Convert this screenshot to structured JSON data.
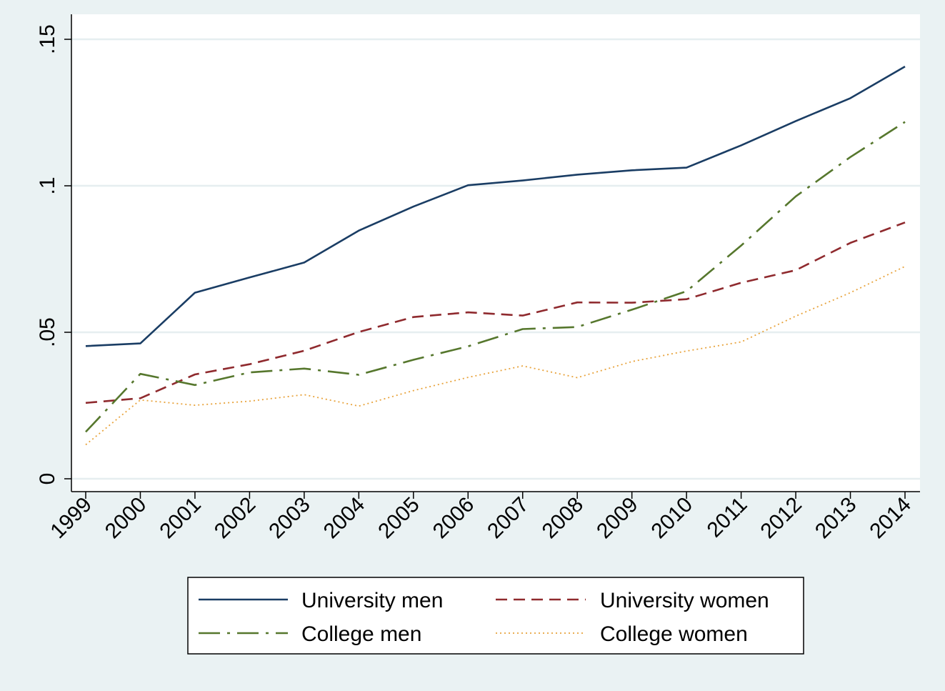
{
  "chart_data": {
    "type": "line",
    "title": "",
    "xlabel": "",
    "ylabel": "",
    "x": [
      1999,
      2000,
      2001,
      2002,
      2003,
      2004,
      2005,
      2006,
      2007,
      2008,
      2009,
      2010,
      2011,
      2012,
      2013,
      2014
    ],
    "x_tick_labels": [
      "1999",
      "2000",
      "2001",
      "2002",
      "2003",
      "2004",
      "2005",
      "2006",
      "2007",
      "2008",
      "2009",
      "2010",
      "2011",
      "2012",
      "2013",
      "2014"
    ],
    "ylim": [
      0,
      0.15
    ],
    "y_ticks": [
      0,
      0.05,
      0.1,
      0.15
    ],
    "y_tick_labels": [
      "0",
      ".05",
      ".1",
      ".15"
    ],
    "grid": true,
    "legend_position": "bottom",
    "series": [
      {
        "name": "University men",
        "color": "#1a3d64",
        "dash": "solid",
        "values": [
          0.0453,
          0.0462,
          0.0635,
          0.0687,
          0.0738,
          0.0847,
          0.0929,
          0.1002,
          0.1018,
          0.1038,
          0.1053,
          0.1062,
          0.1138,
          0.1221,
          0.1299,
          0.1407
        ]
      },
      {
        "name": "University women",
        "color": "#8f2a2e",
        "dash": "dash",
        "values": [
          0.0259,
          0.0275,
          0.0356,
          0.0391,
          0.0437,
          0.0501,
          0.0552,
          0.0568,
          0.0557,
          0.0602,
          0.0601,
          0.0613,
          0.0669,
          0.0712,
          0.0805,
          0.0875
        ]
      },
      {
        "name": "College men",
        "color": "#56772d",
        "dash": "dashdot",
        "values": [
          0.016,
          0.0358,
          0.032,
          0.0363,
          0.0376,
          0.0355,
          0.0406,
          0.0452,
          0.0511,
          0.0518,
          0.0577,
          0.064,
          0.0796,
          0.0964,
          0.1098,
          0.1218
        ]
      },
      {
        "name": "College women",
        "color": "#e8a33c",
        "dash": "dot",
        "values": [
          0.0116,
          0.0269,
          0.0251,
          0.0265,
          0.0287,
          0.0248,
          0.0301,
          0.0346,
          0.0385,
          0.0345,
          0.04,
          0.0436,
          0.0467,
          0.0555,
          0.0635,
          0.0725
        ]
      }
    ]
  }
}
